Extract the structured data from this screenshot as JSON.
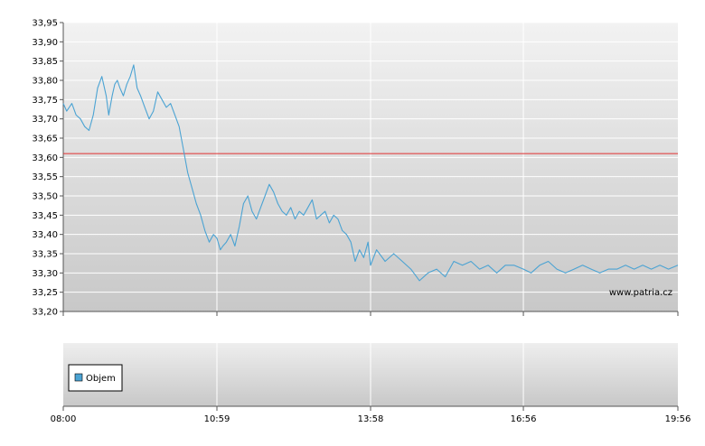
{
  "chart_data": [
    {
      "type": "line",
      "title": "",
      "xlabel": "",
      "ylabel": "",
      "ylim": [
        33.2,
        33.95
      ],
      "y_ticks": [
        "33,20",
        "33,25",
        "33,30",
        "33,35",
        "33,40",
        "33,45",
        "33,50",
        "33,55",
        "33,60",
        "33,65",
        "33,70",
        "33,75",
        "33,80",
        "33,85",
        "33,90",
        "33,95"
      ],
      "x_ticks": [
        "08:00",
        "10:59",
        "13:58",
        "16:56",
        "19:56"
      ],
      "grid": true,
      "reference_line": {
        "value": 33.61,
        "color": "#e03030"
      },
      "watermark": "www.patria.cz",
      "series": [
        {
          "color": "#4ba3d3",
          "x": [
            "08:00",
            "08:04",
            "08:10",
            "08:15",
            "08:20",
            "08:25",
            "08:30",
            "08:35",
            "08:40",
            "08:45",
            "08:50",
            "08:53",
            "08:57",
            "09:00",
            "09:03",
            "09:06",
            "09:10",
            "09:14",
            "09:18",
            "09:22",
            "09:26",
            "09:30",
            "09:35",
            "09:40",
            "09:45",
            "09:50",
            "09:55",
            "10:00",
            "10:05",
            "10:10",
            "10:15",
            "10:20",
            "10:25",
            "10:30",
            "10:35",
            "10:40",
            "10:45",
            "10:50",
            "10:55",
            "10:59",
            "11:03",
            "11:06",
            "11:10",
            "11:15",
            "11:20",
            "11:25",
            "11:30",
            "11:35",
            "11:40",
            "11:45",
            "11:50",
            "11:55",
            "12:00",
            "12:05",
            "12:10",
            "12:15",
            "12:20",
            "12:25",
            "12:30",
            "12:35",
            "12:40",
            "12:45",
            "12:50",
            "12:55",
            "13:00",
            "13:05",
            "13:10",
            "13:15",
            "13:20",
            "13:25",
            "13:30",
            "13:35",
            "13:40",
            "13:45",
            "13:50",
            "13:55",
            "13:58",
            "14:05",
            "14:15",
            "14:25",
            "14:35",
            "14:45",
            "14:55",
            "15:05",
            "15:15",
            "15:25",
            "15:35",
            "15:45",
            "15:55",
            "16:05",
            "16:15",
            "16:25",
            "16:35",
            "16:45",
            "16:56",
            "17:05",
            "17:15",
            "17:25",
            "17:35",
            "17:45",
            "17:55",
            "18:05",
            "18:15",
            "18:25",
            "18:35",
            "18:45",
            "18:55",
            "19:05",
            "19:15",
            "19:25",
            "19:35",
            "19:45",
            "19:56"
          ],
          "y": [
            33.74,
            33.72,
            33.74,
            33.71,
            33.7,
            33.68,
            33.67,
            33.71,
            33.78,
            33.81,
            33.76,
            33.71,
            33.76,
            33.79,
            33.8,
            33.78,
            33.76,
            33.79,
            33.81,
            33.84,
            33.78,
            33.76,
            33.73,
            33.7,
            33.72,
            33.77,
            33.75,
            33.73,
            33.74,
            33.71,
            33.68,
            33.62,
            33.56,
            33.52,
            33.48,
            33.45,
            33.41,
            33.38,
            33.4,
            33.39,
            33.36,
            33.37,
            33.38,
            33.4,
            33.37,
            33.42,
            33.48,
            33.5,
            33.46,
            33.44,
            33.47,
            33.5,
            33.53,
            33.51,
            33.48,
            33.46,
            33.45,
            33.47,
            33.44,
            33.46,
            33.45,
            33.47,
            33.49,
            33.44,
            33.45,
            33.46,
            33.43,
            33.45,
            33.44,
            33.41,
            33.4,
            33.38,
            33.33,
            33.36,
            33.34,
            33.38,
            33.32,
            33.36,
            33.33,
            33.35,
            33.33,
            33.31,
            33.28,
            33.3,
            33.31,
            33.29,
            33.33,
            33.32,
            33.33,
            33.31,
            33.32,
            33.3,
            33.32,
            33.32,
            33.31,
            33.3,
            33.32,
            33.33,
            33.31,
            33.3,
            33.31,
            33.32,
            33.31,
            33.3,
            33.31,
            33.31,
            33.32,
            33.31,
            33.32,
            33.31,
            33.32,
            33.31,
            33.32
          ]
        }
      ]
    },
    {
      "type": "bar",
      "title": "",
      "legend": {
        "entries": [
          "Objem"
        ],
        "position": "bottom-left",
        "color": "#4ba3d3"
      },
      "x_ticks": [
        "08:00",
        "10:59",
        "13:58",
        "16:56",
        "19:56"
      ],
      "values": []
    }
  ]
}
